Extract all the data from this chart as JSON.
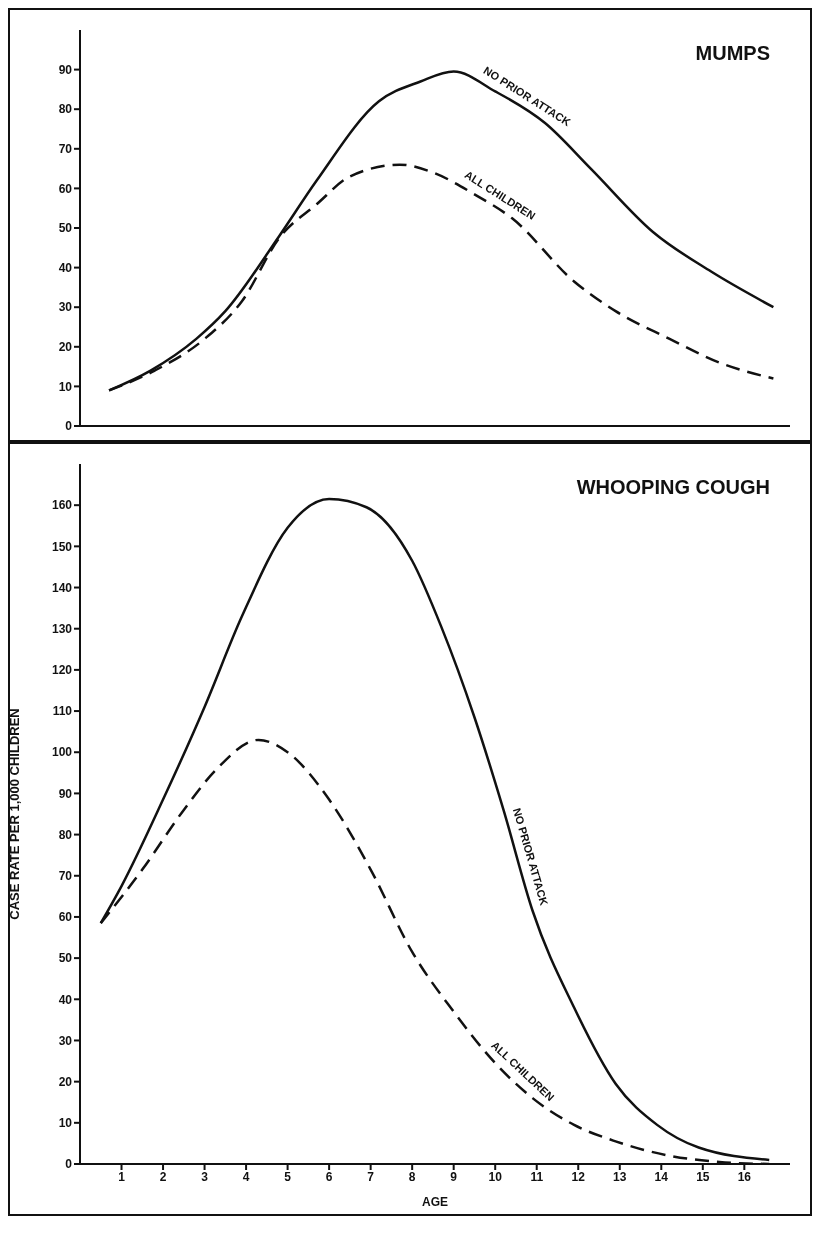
{
  "chart_data": [
    {
      "type": "line",
      "title": "MUMPS",
      "xlim": [
        0,
        17.1
      ],
      "xticks": [
        1,
        2,
        3,
        4,
        5,
        6,
        7,
        8,
        9,
        10,
        11,
        12,
        13,
        14,
        15,
        16
      ],
      "ylim": [
        0,
        100
      ],
      "yticks": [
        0,
        10,
        20,
        30,
        40,
        50,
        60,
        70,
        80,
        90
      ],
      "tick_labels": "y",
      "marker": "none",
      "series": [
        {
          "name": "NO PRIOR ATTACK",
          "color": "#111111",
          "line_style": "solid",
          "x": [
            0.7,
            1.7,
            2.8,
            3.5,
            4.8,
            5.7,
            7.2,
            8.2,
            9.0,
            10.0,
            11.2,
            12.3,
            13.8,
            15.2,
            16.7
          ],
          "values": [
            9,
            14,
            22,
            29,
            48,
            62,
            82,
            87,
            89.5,
            84.5,
            76.5,
            65,
            49,
            39,
            30
          ]
        },
        {
          "name": "ALL CHILDREN",
          "color": "#111111",
          "line_style": "dashed",
          "x": [
            0.7,
            1.8,
            3.0,
            3.9,
            4.8,
            5.7,
            6.5,
            7.7,
            8.5,
            9.5,
            10.4,
            11.9,
            12.9,
            14.2,
            15.4,
            16.7
          ],
          "values": [
            9,
            14,
            22,
            31.5,
            47.5,
            56,
            63,
            66,
            64,
            58.5,
            52.5,
            36.5,
            29,
            22,
            16,
            12
          ]
        }
      ]
    },
    {
      "type": "line",
      "title": "WHOOPING COUGH",
      "xlabel": "AGE",
      "ylabel": "CASE RATE PER 1,000 CHILDREN",
      "xlim": [
        0,
        17.1
      ],
      "xticks": [
        1,
        2,
        3,
        4,
        5,
        6,
        7,
        8,
        9,
        10,
        11,
        12,
        13,
        14,
        15,
        16
      ],
      "ylim": [
        0,
        170
      ],
      "yticks": [
        0,
        10,
        20,
        30,
        40,
        50,
        60,
        70,
        80,
        90,
        100,
        110,
        120,
        130,
        140,
        150,
        160
      ],
      "marker": "none",
      "series": [
        {
          "name": "NO PRIOR ATTACK",
          "color": "#111111",
          "line_style": "solid",
          "x": [
            0.5,
            1.0,
            2.0,
            3.0,
            3.9,
            5.0,
            6.0,
            6.9,
            8.0,
            8.7,
            9.5,
            10.2,
            10.9,
            11.9,
            12.9,
            13.9,
            14.9,
            16.6
          ],
          "values": [
            58.5,
            67.5,
            88.5,
            111,
            133,
            154.5,
            161.5,
            159.5,
            146.5,
            130.5,
            108.5,
            86,
            61.5,
            38,
            19.5,
            9.5,
            4,
            1
          ]
        },
        {
          "name": "ALL CHILDREN",
          "color": "#111111",
          "line_style": "dashed",
          "x": [
            0.5,
            1.5,
            2.5,
            3.3,
            4.3,
            5.0,
            6.0,
            7.0,
            8.0,
            9.0,
            10.0,
            10.9,
            11.9,
            12.9,
            14.2,
            15.4,
            16.6
          ],
          "values": [
            58.5,
            71.5,
            86,
            96,
            103,
            100,
            88.5,
            71.5,
            51.5,
            37,
            24.5,
            16,
            9.5,
            5.5,
            2,
            0.5,
            0
          ]
        }
      ]
    }
  ]
}
